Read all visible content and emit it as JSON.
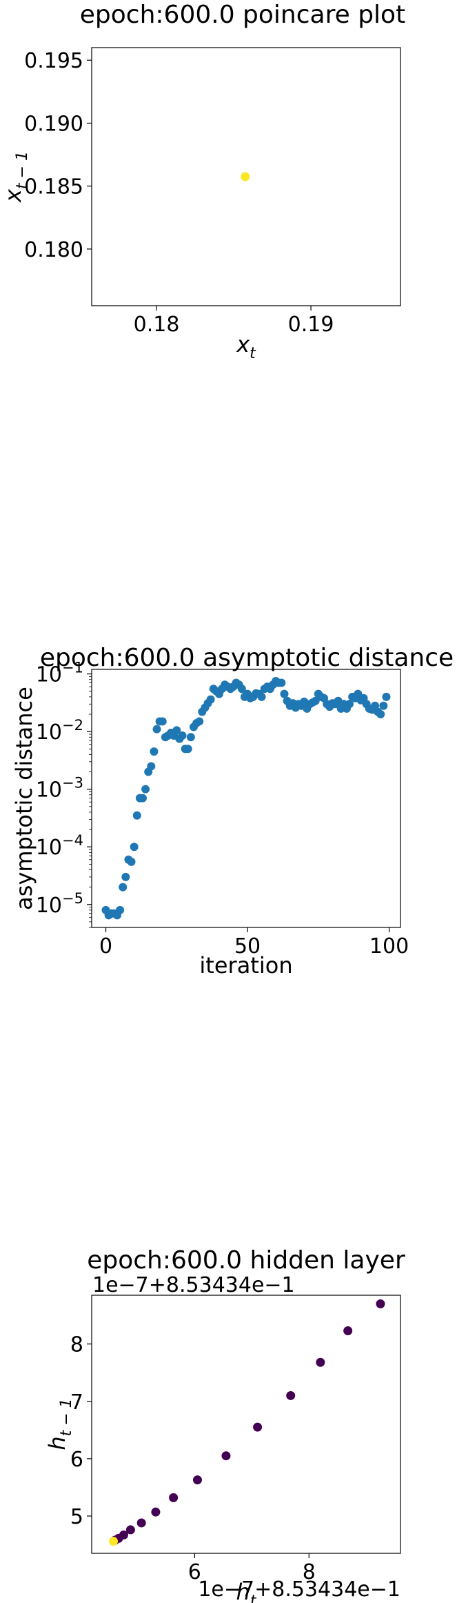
{
  "chart_data": [
    {
      "type": "scatter",
      "title": "epoch:600.0 poincare plot",
      "xlabel": "x_t",
      "ylabel": "x_{t-1}",
      "xlim": [
        0.1758,
        0.1958
      ],
      "ylim": [
        0.1755,
        0.196
      ],
      "x_ticks": [
        0.18,
        0.19
      ],
      "x_tick_labels": [
        "0.18",
        "0.19"
      ],
      "y_ticks": [
        0.18,
        0.185,
        0.19,
        0.195
      ],
      "y_tick_labels": [
        "0.180",
        "0.185",
        "0.190",
        "0.195"
      ],
      "grid": false,
      "points": [
        {
          "x": 0.18575,
          "y": 0.18575,
          "color": "#fde725"
        }
      ]
    },
    {
      "type": "scatter",
      "title": "epoch:600.0 asymptotic distance",
      "xlabel": "iteration",
      "ylabel": "asymptotic distance",
      "xlim": [
        -5,
        104
      ],
      "y_scale": "log",
      "ylim": [
        4e-06,
        0.12
      ],
      "x_ticks": [
        0,
        50,
        100
      ],
      "x_tick_labels": [
        "0",
        "50",
        "100"
      ],
      "y_ticks": [
        1e-05,
        0.0001,
        0.001,
        0.01,
        0.1
      ],
      "y_tick_labels_base": [
        "10",
        "10",
        "10",
        "10",
        "10"
      ],
      "y_tick_labels_exp": [
        "−5",
        "−4",
        "−3",
        "−2",
        "−1"
      ],
      "grid": false,
      "color": "#1f77b4",
      "x": [
        0,
        1,
        2,
        3,
        4,
        5,
        6,
        7,
        8,
        9,
        10,
        11,
        12,
        13,
        14,
        15,
        16,
        17,
        18,
        19,
        20,
        21,
        22,
        23,
        24,
        25,
        26,
        27,
        28,
        29,
        30,
        31,
        32,
        33,
        34,
        35,
        36,
        37,
        38,
        39,
        40,
        41,
        42,
        43,
        44,
        45,
        46,
        47,
        48,
        49,
        50,
        51,
        52,
        53,
        54,
        55,
        56,
        57,
        58,
        59,
        60,
        61,
        62,
        63,
        64,
        65,
        66,
        67,
        68,
        69,
        70,
        71,
        72,
        73,
        74,
        75,
        76,
        77,
        78,
        79,
        80,
        81,
        82,
        83,
        84,
        85,
        86,
        87,
        88,
        89,
        90,
        91,
        92,
        93,
        94,
        95,
        96,
        97,
        98,
        99
      ],
      "y": [
        8e-06,
        6.5e-06,
        7e-06,
        7e-06,
        6.5e-06,
        8e-06,
        2e-05,
        3e-05,
        6e-05,
        5.5e-05,
        0.0001,
        0.00035,
        0.0007,
        0.0007,
        0.001,
        0.002,
        0.0025,
        0.0045,
        0.011,
        0.015,
        0.015,
        0.008,
        0.0085,
        0.0095,
        0.0085,
        0.0105,
        0.0075,
        0.0085,
        0.005,
        0.005,
        0.008,
        0.012,
        0.014,
        0.015,
        0.022,
        0.026,
        0.031,
        0.036,
        0.055,
        0.05,
        0.045,
        0.055,
        0.065,
        0.06,
        0.055,
        0.06,
        0.07,
        0.065,
        0.055,
        0.04,
        0.045,
        0.038,
        0.04,
        0.046,
        0.045,
        0.04,
        0.055,
        0.06,
        0.055,
        0.065,
        0.075,
        0.07,
        0.07,
        0.045,
        0.034,
        0.028,
        0.031,
        0.026,
        0.03,
        0.028,
        0.033,
        0.025,
        0.03,
        0.032,
        0.034,
        0.045,
        0.04,
        0.038,
        0.03,
        0.027,
        0.031,
        0.03,
        0.034,
        0.025,
        0.03,
        0.025,
        0.03,
        0.04,
        0.038,
        0.045,
        0.035,
        0.038,
        0.03,
        0.025,
        0.024,
        0.028,
        0.022,
        0.02,
        0.028,
        0.04
      ]
    },
    {
      "type": "scatter",
      "title": "epoch:600.0 hidden layer",
      "xlabel": "h_t",
      "ylabel": "h_{t-1}",
      "x_offset_label": "1e−7+8.53434e−1",
      "y_offset_label": "1e−7+8.53434e−1",
      "xlim": [
        4.2,
        9.6
      ],
      "ylim": [
        4.35,
        8.85
      ],
      "x_ticks": [
        6,
        8
      ],
      "x_tick_labels": [
        "6",
        "8"
      ],
      "y_ticks": [
        5,
        6,
        7,
        8
      ],
      "y_tick_labels": [
        "5",
        "6",
        "7",
        "8"
      ],
      "grid": false,
      "colormap": "viridis",
      "points": [
        {
          "x": 9.25,
          "y": 8.7,
          "color": "#440154"
        },
        {
          "x": 8.68,
          "y": 8.23,
          "color": "#440154"
        },
        {
          "x": 8.2,
          "y": 7.68,
          "color": "#440154"
        },
        {
          "x": 7.68,
          "y": 7.1,
          "color": "#440154"
        },
        {
          "x": 7.1,
          "y": 6.55,
          "color": "#440154"
        },
        {
          "x": 6.55,
          "y": 6.05,
          "color": "#440154"
        },
        {
          "x": 6.05,
          "y": 5.63,
          "color": "#440154"
        },
        {
          "x": 5.63,
          "y": 5.32,
          "color": "#440154"
        },
        {
          "x": 5.32,
          "y": 5.07,
          "color": "#440154"
        },
        {
          "x": 5.07,
          "y": 4.88,
          "color": "#440154"
        },
        {
          "x": 4.88,
          "y": 4.76,
          "color": "#440154"
        },
        {
          "x": 4.76,
          "y": 4.67,
          "color": "#440154"
        },
        {
          "x": 4.67,
          "y": 4.61,
          "color": "#440154"
        },
        {
          "x": 4.61,
          "y": 4.58,
          "color": "#440154"
        },
        {
          "x": 4.58,
          "y": 4.56,
          "color": "#fde725"
        }
      ]
    }
  ]
}
